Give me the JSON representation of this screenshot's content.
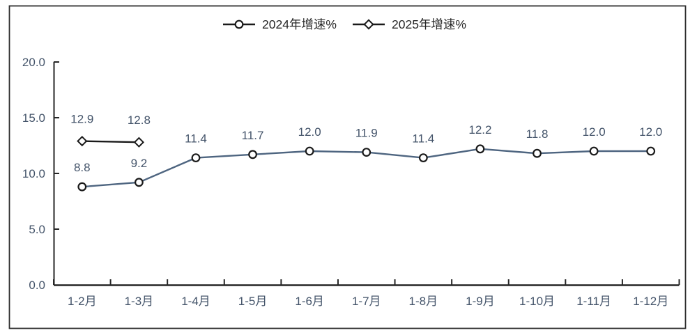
{
  "chart_data": {
    "type": "line",
    "title": "",
    "categories": [
      "1-2月",
      "1-3月",
      "1-4月",
      "1-5月",
      "1-6月",
      "1-7月",
      "1-8月",
      "1-9月",
      "1-10月",
      "1-11月",
      "1-12月"
    ],
    "series": [
      {
        "name": "2024年增速%",
        "marker": "circle",
        "color": "#4e6580",
        "values": [
          8.8,
          9.2,
          11.4,
          11.7,
          12.0,
          11.9,
          11.4,
          12.2,
          11.8,
          12.0,
          12.0
        ],
        "labels": [
          "8.8",
          "9.2",
          "11.4",
          "11.7",
          "12.0",
          "11.9",
          "11.4",
          "12.2",
          "11.8",
          "12.0",
          "12.0"
        ]
      },
      {
        "name": "2025年增速%",
        "marker": "diamond",
        "color": "#1a1a1a",
        "values": [
          12.9,
          12.8
        ],
        "labels": [
          "12.9",
          "12.8"
        ]
      }
    ],
    "ylim": [
      0,
      20
    ],
    "yticks": [
      0,
      5,
      10,
      15,
      20
    ],
    "ytick_labels": [
      "0.0",
      "5.0",
      "10.0",
      "15.0",
      "20.0"
    ],
    "xlabel": "",
    "ylabel": "",
    "grid": false,
    "legend_position": "top-center",
    "colors": {
      "background": "#ffffff",
      "border": "#2e2e2e",
      "axis": "#262626",
      "tick_label": "#44546a",
      "data_label": "#44546a",
      "legend_text": "#262626",
      "marker_fill": "#ffffff",
      "marker_stroke": "#1a1a1a"
    }
  }
}
